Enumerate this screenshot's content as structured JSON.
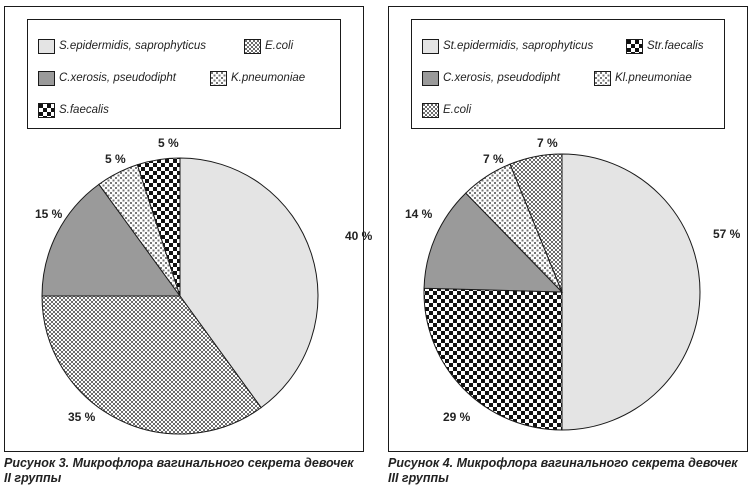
{
  "figures": [
    {
      "caption": "Рисунок 3. Микрофлора вагинального секрета девочек II группы",
      "legend": [
        {
          "label": "S.epidermidis,  saprophyticus",
          "pattern": "light"
        },
        {
          "label": "E.coli",
          "pattern": "fine"
        },
        {
          "label": "C.xerosis, pseudodipht",
          "pattern": "gray"
        },
        {
          "label": "K.pneumoniae",
          "pattern": "dots"
        },
        {
          "label": "S.faecalis",
          "pattern": "checker"
        }
      ]
    },
    {
      "caption": "Рисунок 4. Микрофлора вагинального секрета девочек III группы",
      "legend": [
        {
          "label": "St.epidermidis, saprophyticus",
          "pattern": "light"
        },
        {
          "label": "Str.faecalis",
          "pattern": "checker"
        },
        {
          "label": "C.xerosis, pseudodipht",
          "pattern": "gray"
        },
        {
          "label": "Kl.pneumoniae",
          "pattern": "dots"
        },
        {
          "label": "E.coli",
          "pattern": "fine"
        }
      ]
    }
  ],
  "chart_data": [
    {
      "type": "pie",
      "title": "Рисунок 3. Микрофлора вагинального секрета девочек II группы",
      "slices": [
        {
          "name": "S.epidermidis,  saprophyticus",
          "value": 40,
          "label": "40 %",
          "pattern": "light"
        },
        {
          "name": "E.coli",
          "value": 35,
          "label": "35 %",
          "pattern": "fine"
        },
        {
          "name": "C.xerosis, pseudodipht",
          "value": 15,
          "label": "15 %",
          "pattern": "gray"
        },
        {
          "name": "K.pneumoniae",
          "value": 5,
          "label": "5 %",
          "pattern": "dots"
        },
        {
          "name": "S.faecalis",
          "value": 5,
          "label": "5 %",
          "pattern": "checker"
        }
      ]
    },
    {
      "type": "pie",
      "title": "Рисунок 4. Микрофлора вагинального секрета девочек III группы",
      "slices": [
        {
          "name": "St.epidermidis, saprophyticus",
          "value": 57,
          "label": "57 %",
          "pattern": "light"
        },
        {
          "name": "Str.faecalis",
          "value": 29,
          "label": "29 %",
          "pattern": "checker"
        },
        {
          "name": "C.xerosis, pseudodipht",
          "value": 14,
          "label": "14 %",
          "pattern": "gray"
        },
        {
          "name": "Kl.pneumoniae",
          "value": 7,
          "label": "7 %",
          "pattern": "dots"
        },
        {
          "name": "E.coli",
          "value": 7,
          "label": "7 %",
          "pattern": "fine"
        }
      ]
    }
  ],
  "colors": {
    "light": "#e4e4e4",
    "gray": "#9a9a9a",
    "outline": "#1a1a1a"
  }
}
